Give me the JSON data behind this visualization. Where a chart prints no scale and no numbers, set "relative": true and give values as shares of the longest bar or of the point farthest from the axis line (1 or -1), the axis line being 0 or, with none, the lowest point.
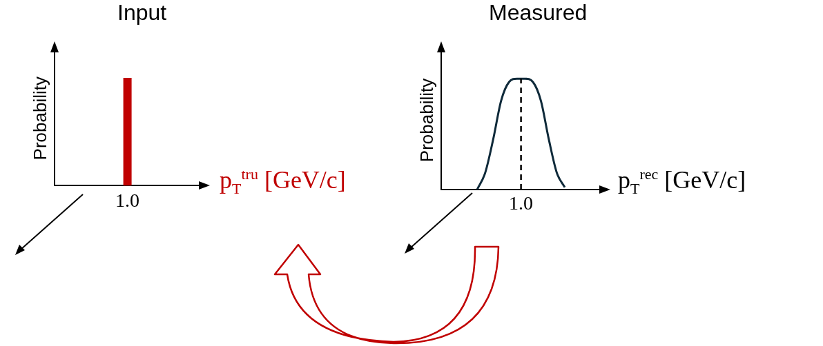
{
  "chart_data": [
    {
      "type": "bar",
      "title": "Input",
      "xlabel": "p$_{T}$$^{tru}$ [GeV/c]",
      "ylabel": "Probability",
      "relative": true,
      "categories": [
        "1.0"
      ],
      "series": [
        {
          "color": "#c00000",
          "values": [
            1
          ]
        }
      ],
      "grid": false,
      "legend": false,
      "tick_labels": "x"
    },
    {
      "type": "line",
      "title": "Measured",
      "xlabel": "p$_{T}$$^{rec}$ [GeV/c]",
      "ylabel": "Probability",
      "relative": true,
      "categories": [
        null,
        null,
        null,
        null,
        null,
        null,
        null,
        null,
        null,
        null,
        null,
        null,
        null,
        null,
        null,
        null,
        null,
        null,
        null,
        null
      ],
      "series": [
        {
          "color": "#0f2a3a",
          "values": [
            null,
            null,
            null,
            null,
            0,
            0.15,
            0.45,
            0.8,
            0.97,
            1,
            1,
            0.97,
            0.8,
            0.45,
            0.15,
            0.02,
            null,
            null,
            null,
            null
          ]
        }
      ],
      "annotations": [
        "1.0"
      ],
      "marker": "none",
      "line_style": "solid",
      "grid": false,
      "legend": false,
      "tick_labels": "x"
    }
  ]
}
